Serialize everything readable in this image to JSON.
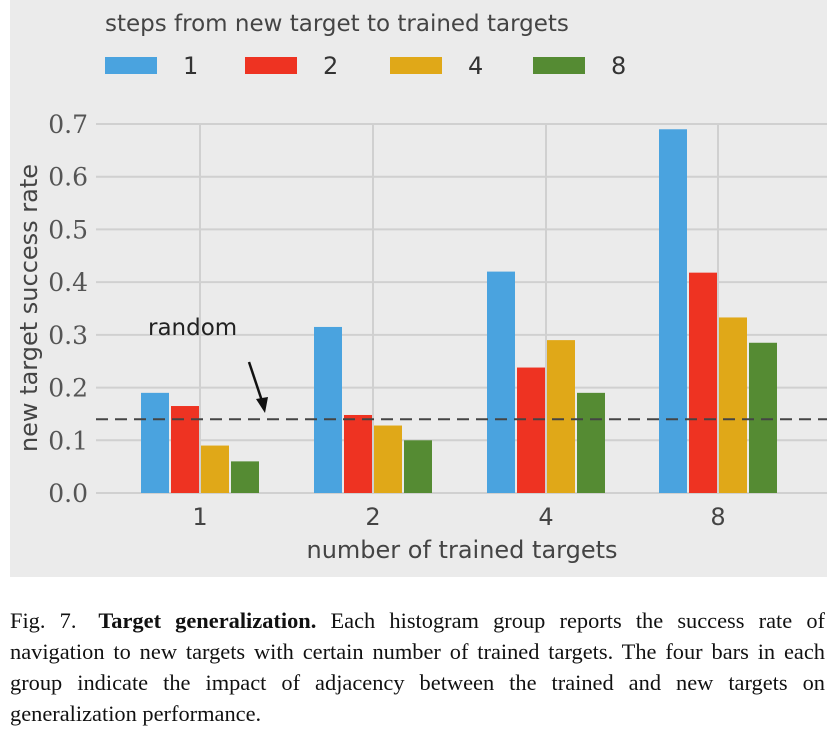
{
  "chart_data": {
    "type": "bar",
    "categories": [
      "1",
      "2",
      "4",
      "8"
    ],
    "xlabel": "number of trained targets",
    "ylabel": "new target success rate",
    "ylim": [
      0,
      0.7
    ],
    "yticks": [
      "0.0",
      "0.1",
      "0.2",
      "0.3",
      "0.4",
      "0.5",
      "0.6",
      "0.7"
    ],
    "grid": true,
    "legend": {
      "title": "steps from new target to trained targets",
      "placement": "top"
    },
    "series": [
      {
        "name": "1",
        "color": "#4aa3df",
        "values": [
          0.19,
          0.315,
          0.42,
          0.69
        ]
      },
      {
        "name": "2",
        "color": "#ee3322",
        "values": [
          0.165,
          0.148,
          0.238,
          0.418
        ]
      },
      {
        "name": "4",
        "color": "#e0a818",
        "values": [
          0.09,
          0.128,
          0.29,
          0.333
        ]
      },
      {
        "name": "8",
        "color": "#558b33",
        "values": [
          0.06,
          0.1,
          0.19,
          0.285
        ]
      }
    ],
    "reference_line": {
      "label": "random",
      "value": 0.14,
      "style": "dashed"
    }
  },
  "caption": {
    "label": "Fig. 7.",
    "title": "Target generalization.",
    "text": "Each histogram group reports the success rate of navigation to new targets with certain number of trained targets. The four bars in each group indicate the impact of adjacency between the trained and new targets on generalization performance."
  },
  "colors": {
    "panel_bg": "#ebebeb",
    "grid": "#d0d0d0"
  }
}
